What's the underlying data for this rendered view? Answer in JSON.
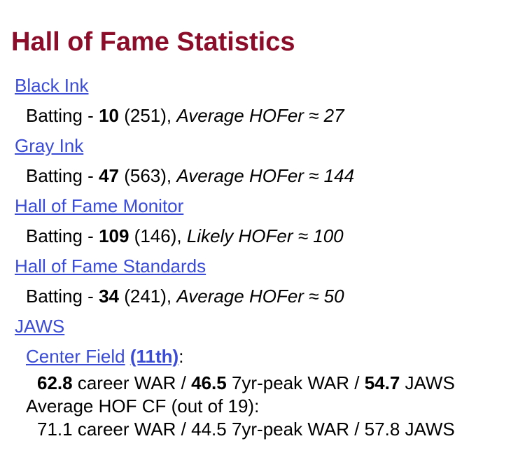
{
  "title": "Hall of Fame Statistics",
  "black_ink": {
    "link": "Black Ink",
    "prefix": "Batting - ",
    "value": "10",
    "rank": " (251), ",
    "compare_label": "Average HOFer ≈ 27"
  },
  "gray_ink": {
    "link": "Gray Ink",
    "prefix": "Batting - ",
    "value": "47",
    "rank": " (563), ",
    "compare_label": "Average HOFer ≈ 144"
  },
  "hof_monitor": {
    "link": "Hall of Fame Monitor",
    "prefix": "Batting - ",
    "value": "109",
    "rank": " (146), ",
    "compare_label": "Likely HOFer ≈ 100"
  },
  "hof_standards": {
    "link": "Hall of Fame Standards",
    "prefix": "Batting - ",
    "value": "34",
    "rank": " (241), ",
    "compare_label": "Average HOFer ≈ 50"
  },
  "jaws": {
    "link": "JAWS",
    "position_link": "Center Field",
    "position_rank": "(11th)",
    "position_colon": ":",
    "career_war": "62.8",
    "career_war_label": " career WAR / ",
    "peak_war": "46.5",
    "peak_war_label": " 7yr-peak WAR / ",
    "jaws_value": "54.7",
    "jaws_label": " JAWS",
    "average_heading": "Average HOF CF (out of 19):",
    "average_line": "71.1 career WAR / 44.5 7yr-peak WAR / 57.8 JAWS"
  }
}
